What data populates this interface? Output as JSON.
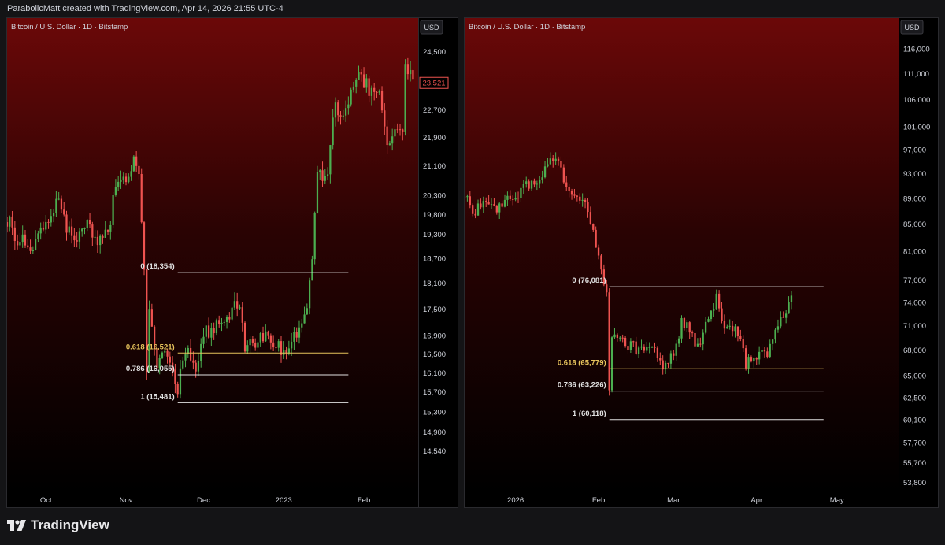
{
  "header": {
    "credit": "ParabolicMatt created with TradingView.com, Apr 14, 2026 21:55 UTC-4"
  },
  "footer": {
    "brand": "TradingView",
    "logo_icon": "tradingview-logo-icon"
  },
  "theme": {
    "up": "#4caf50",
    "down": "#ef5350",
    "bg_top": "#6b0808",
    "bg_bottom": "#000000",
    "fib_white": "#e0e0e0",
    "fib_gold": "#e6c35c",
    "text": "#d1d4dc"
  },
  "chart_data": [
    {
      "type": "candlestick",
      "title": "Bitcoin / U.S. Dollar · 1D · Bitstamp",
      "currency": "USD",
      "scale": "log",
      "ylim": [
        13800,
        25600
      ],
      "y_ticks": [
        "24,500",
        "22,700",
        "21,900",
        "21,100",
        "20,300",
        "19,800",
        "19,300",
        "18,700",
        "18,100",
        "17,500",
        "16,900",
        "16,500",
        "16,100",
        "15,700",
        "15,300",
        "14,900",
        "14,540"
      ],
      "last_price": "23,521",
      "x_labels": [
        {
          "label": "Oct",
          "date": "2022-10-01"
        },
        {
          "label": "Nov",
          "date": "2022-11-01"
        },
        {
          "label": "Dec",
          "date": "2022-12-01"
        },
        {
          "label": "2023",
          "date": "2023-01-01"
        },
        {
          "label": "Feb",
          "date": "2023-02-01"
        }
      ],
      "x_range": [
        "2022-09-16",
        "2023-02-22"
      ],
      "fib_levels": [
        {
          "ratio": "0",
          "label": "0 (18,354)",
          "price": 18354,
          "color": "white"
        },
        {
          "ratio": "0.618",
          "label": "0.618 (16,521)",
          "price": 16521,
          "color": "gold"
        },
        {
          "ratio": "0.786",
          "label": "0.786 (16,055)",
          "price": 16055,
          "color": "white"
        },
        {
          "ratio": "1",
          "label": "1 (15,481)",
          "price": 15481,
          "color": "white"
        }
      ],
      "fib_range": [
        "2022-11-21",
        "2023-01-26"
      ],
      "close_path": [
        [
          "2022-09-16",
          19700
        ],
        [
          "2022-09-20",
          19200
        ],
        [
          "2022-09-24",
          19000
        ],
        [
          "2022-09-28",
          19200
        ],
        [
          "2022-10-02",
          19500
        ],
        [
          "2022-10-05",
          20200
        ],
        [
          "2022-10-09",
          19500
        ],
        [
          "2022-10-13",
          19100
        ],
        [
          "2022-10-17",
          19500
        ],
        [
          "2022-10-21",
          19200
        ],
        [
          "2022-10-25",
          19300
        ],
        [
          "2022-10-27",
          20100
        ],
        [
          "2022-10-30",
          20800
        ],
        [
          "2022-11-02",
          20600
        ],
        [
          "2022-11-04",
          21200
        ],
        [
          "2022-11-06",
          20900
        ],
        [
          "2022-11-08",
          18500
        ],
        [
          "2022-11-09",
          16300
        ],
        [
          "2022-11-10",
          17600
        ],
        [
          "2022-11-13",
          16300
        ],
        [
          "2022-11-17",
          16600
        ],
        [
          "2022-11-21",
          15800
        ],
        [
          "2022-11-24",
          16600
        ],
        [
          "2022-11-28",
          16200
        ],
        [
          "2022-12-02",
          17000
        ],
        [
          "2022-12-06",
          17100
        ],
        [
          "2022-12-10",
          17200
        ],
        [
          "2022-12-13",
          17800
        ],
        [
          "2022-12-15",
          17400
        ],
        [
          "2022-12-17",
          16700
        ],
        [
          "2022-12-21",
          16800
        ],
        [
          "2022-12-25",
          16850
        ],
        [
          "2022-12-29",
          16600
        ],
        [
          "2023-01-03",
          16700
        ],
        [
          "2023-01-07",
          16950
        ],
        [
          "2023-01-10",
          17500
        ],
        [
          "2023-01-12",
          18700
        ],
        [
          "2023-01-14",
          20800
        ],
        [
          "2023-01-18",
          21000
        ],
        [
          "2023-01-20",
          22700
        ],
        [
          "2023-01-25",
          22800
        ],
        [
          "2023-01-29",
          23700
        ],
        [
          "2023-02-01",
          23500
        ],
        [
          "2023-02-04",
          23300
        ],
        [
          "2023-02-07",
          23200
        ],
        [
          "2023-02-10",
          21800
        ],
        [
          "2023-02-13",
          21900
        ],
        [
          "2023-02-16",
          22300
        ],
        [
          "2023-02-17",
          24300
        ],
        [
          "2023-02-20",
          23521
        ]
      ]
    },
    {
      "type": "candlestick",
      "title": "Bitcoin / U.S. Dollar · 1D · Bitstamp",
      "currency": "USD",
      "scale": "log",
      "ylim": [
        53000,
        122500
      ],
      "y_ticks": [
        "116,000",
        "111,000",
        "106,000",
        "101,000",
        "97,000",
        "93,000",
        "89,000",
        "85,000",
        "81,000",
        "77,000",
        "74,000",
        "71,000",
        "68,000",
        "65,000",
        "62,500",
        "60,100",
        "57,700",
        "55,700",
        "53,800"
      ],
      "x_labels": [
        {
          "label": "2026",
          "date": "2026-01-01"
        },
        {
          "label": "Feb",
          "date": "2026-02-01"
        },
        {
          "label": "Mar",
          "date": "2026-03-01"
        },
        {
          "label": "Apr",
          "date": "2026-04-01"
        },
        {
          "label": "May",
          "date": "2026-05-01"
        }
      ],
      "x_range": [
        "2025-12-13",
        "2026-05-24"
      ],
      "fib_levels": [
        {
          "ratio": "0",
          "label": "0 (76,081)",
          "price": 76081,
          "color": "white"
        },
        {
          "ratio": "0.618",
          "label": "0.618 (65,779)",
          "price": 65779,
          "color": "gold"
        },
        {
          "ratio": "0.786",
          "label": "0.786 (63,226)",
          "price": 63226,
          "color": "white"
        },
        {
          "ratio": "1",
          "label": "1 (60,118)",
          "price": 60118,
          "color": "white"
        }
      ],
      "fib_range": [
        "2026-02-05",
        "2026-04-26"
      ],
      "close_path": [
        [
          "2025-12-13",
          89000
        ],
        [
          "2025-12-17",
          87000
        ],
        [
          "2025-12-21",
          88000
        ],
        [
          "2025-12-25",
          87500
        ],
        [
          "2025-12-29",
          88500
        ],
        [
          "2026-01-02",
          89500
        ],
        [
          "2026-01-06",
          91500
        ],
        [
          "2026-01-09",
          90500
        ],
        [
          "2026-01-12",
          93500
        ],
        [
          "2026-01-14",
          96500
        ],
        [
          "2026-01-17",
          95000
        ],
        [
          "2026-01-20",
          91000
        ],
        [
          "2026-01-23",
          89000
        ],
        [
          "2026-01-27",
          88000
        ],
        [
          "2026-01-30",
          83500
        ],
        [
          "2026-02-02",
          78500
        ],
        [
          "2026-02-04",
          75500
        ],
        [
          "2026-02-05",
          63500
        ],
        [
          "2026-02-06",
          70000
        ],
        [
          "2026-02-10",
          69000
        ],
        [
          "2026-02-14",
          68500
        ],
        [
          "2026-02-18",
          67500
        ],
        [
          "2026-02-22",
          68000
        ],
        [
          "2026-02-25",
          65500
        ],
        [
          "2026-03-01",
          67500
        ],
        [
          "2026-03-04",
          71500
        ],
        [
          "2026-03-07",
          70500
        ],
        [
          "2026-03-10",
          68500
        ],
        [
          "2026-03-14",
          71500
        ],
        [
          "2026-03-17",
          74500
        ],
        [
          "2026-03-20",
          70500
        ],
        [
          "2026-03-24",
          71200
        ],
        [
          "2026-03-28",
          66500
        ],
        [
          "2026-04-01",
          67500
        ],
        [
          "2026-04-05",
          67500
        ],
        [
          "2026-04-09",
          71500
        ],
        [
          "2026-04-12",
          73000
        ],
        [
          "2026-04-14",
          74500
        ]
      ]
    }
  ]
}
